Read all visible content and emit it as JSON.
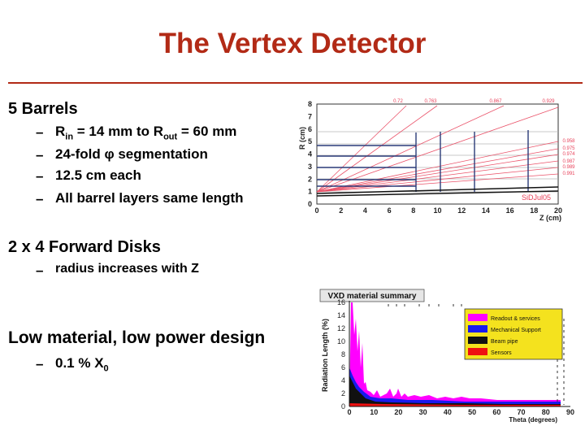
{
  "slide": {
    "title": "The Vertex Detector",
    "barrels": {
      "heading": "5 Barrels",
      "b1_r": "R",
      "b1_in": "in",
      "b1_mid": " = 14 mm to R",
      "b1_out": "out",
      "b1_end": " = 60 mm",
      "b2": "24-fold φ segmentation",
      "b3": "12.5 cm each",
      "b4": "All barrel layers same length"
    },
    "disks": {
      "heading": "2 x 4  Forward Disks",
      "b1": "radius increases with Z"
    },
    "material": {
      "heading": "Low material, low power design",
      "b1_pre": "0.1 % X",
      "b1_sub": "0"
    }
  },
  "dash_char": "–",
  "figure_top": {
    "ylabel": "R (cm)",
    "xlabel": "Z (cm)",
    "xticks": [
      "0",
      "2",
      "4",
      "6",
      "8",
      "10",
      "12",
      "14",
      "16",
      "18",
      "20"
    ],
    "yticks": [
      "0",
      "1",
      "2",
      "3",
      "4",
      "5",
      "6",
      "7",
      "8"
    ],
    "top_labels": [
      "0.72",
      "0.763",
      "0.867",
      "0.929"
    ],
    "right_labels": [
      "0.958",
      "0.975",
      "0.974",
      "0.987",
      "0.989",
      "0.991"
    ],
    "tag": "SiDJul05",
    "line_color": "#e8415a"
  },
  "figure_bottom": {
    "title": "VXD material summary",
    "ylabel": "Radiation Length (%)",
    "xlabel": "Theta (degrees)",
    "xticks": [
      "0",
      "10",
      "20",
      "30",
      "40",
      "50",
      "60",
      "70",
      "80",
      "90"
    ],
    "yticks": [
      "0",
      "2",
      "4",
      "6",
      "8",
      "10",
      "12",
      "14",
      "16"
    ],
    "legend": [
      {
        "label": "Readout & services",
        "color": "#ff00ff"
      },
      {
        "label": "Mechanical Support",
        "color": "#1a1aee"
      },
      {
        "label": "Beam pipe",
        "color": "#111111"
      },
      {
        "label": "Sensors",
        "color": "#ee1111"
      }
    ],
    "legend_bg": "#f4e21e"
  }
}
